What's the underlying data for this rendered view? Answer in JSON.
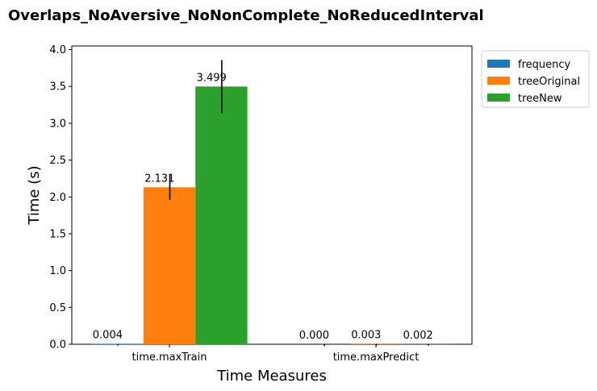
{
  "chart_data": {
    "type": "bar",
    "title": "Overlaps_NoAversive_NoNonComplete_NoReducedInterval",
    "xlabel": "Time Measures",
    "ylabel": "Time (s)",
    "ylim": [
      0,
      4.05
    ],
    "yticks": [
      "0.0",
      "0.5",
      "1.0",
      "1.5",
      "2.0",
      "2.5",
      "3.0",
      "3.5",
      "4.0"
    ],
    "categories": [
      "time.maxTrain",
      "time.maxPredict"
    ],
    "legend_position": "outside-top-right",
    "grid": false,
    "series": [
      {
        "name": "frequency",
        "color": "#1f77b4",
        "values": [
          0.004,
          0.0
        ],
        "labels": [
          "0.004",
          "0.000"
        ],
        "errors": [
          0.0,
          0.0
        ]
      },
      {
        "name": "treeOriginal",
        "color": "#ff7f0e",
        "values": [
          2.131,
          0.003
        ],
        "labels": [
          "2.131",
          "0.003"
        ],
        "errors": [
          0.17,
          0.0
        ]
      },
      {
        "name": "treeNew",
        "color": "#2ca02c",
        "values": [
          3.499,
          0.002
        ],
        "labels": [
          "3.499",
          "0.002"
        ],
        "errors": [
          0.36,
          0.0
        ]
      }
    ]
  }
}
